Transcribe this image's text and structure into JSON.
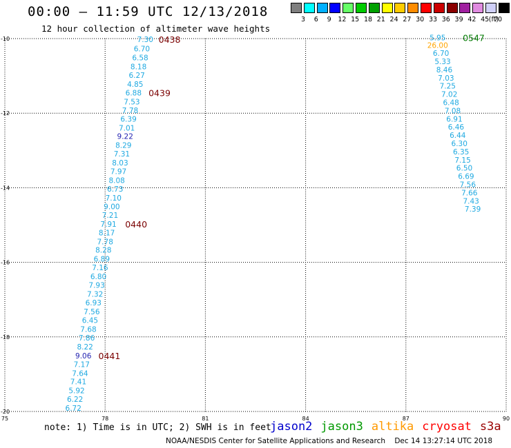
{
  "header": {
    "title": "00:00 – 11:59 UTC 12/13/2018",
    "subtitle": "12 hour collection of altimeter wave heights"
  },
  "legend": {
    "unit": "(ft)",
    "bins": [
      {
        "label": "3",
        "color": "#7f7f7f"
      },
      {
        "label": "6",
        "color": "#00ffff"
      },
      {
        "label": "9",
        "color": "#00b0ff"
      },
      {
        "label": "12",
        "color": "#0000ff"
      },
      {
        "label": "15",
        "color": "#66ff66"
      },
      {
        "label": "18",
        "color": "#00cc00"
      },
      {
        "label": "21",
        "color": "#00a000"
      },
      {
        "label": "24",
        "color": "#ffff00"
      },
      {
        "label": "27",
        "color": "#ffcc00"
      },
      {
        "label": "30",
        "color": "#ff8c00"
      },
      {
        "label": "33",
        "color": "#ff0000"
      },
      {
        "label": "36",
        "color": "#cc0000"
      },
      {
        "label": "39",
        "color": "#8b0000"
      },
      {
        "label": "42",
        "color": "#a020a0"
      },
      {
        "label": "45",
        "color": "#e08ce0"
      },
      {
        "label": "70",
        "color": "#d0d0f8"
      },
      {
        "label": "",
        "color": "#000000"
      }
    ]
  },
  "map": {
    "lon_range": [
      75,
      90
    ],
    "lat_range": [
      20,
      10
    ],
    "lon_ticks": [
      "75",
      "78",
      "81",
      "84",
      "87",
      "90"
    ],
    "lat_ticks": [
      "-10",
      "-12",
      "-14",
      "-16",
      "-18",
      "-20"
    ],
    "colors": {
      "low": "#1fa9e1",
      "mid": "#1f1fb0",
      "high": "#ffa500",
      "pass": "#7a0000",
      "green": "#007a00"
    }
  },
  "tracks": [
    {
      "name": "track-west",
      "points": [
        {
          "lon": 79.2,
          "lat": 10.02,
          "v": "7.30",
          "c": "low"
        },
        {
          "lon": 79.1,
          "lat": 10.27,
          "v": "6.70",
          "c": "low"
        },
        {
          "lon": 79.05,
          "lat": 10.51,
          "v": "6.58",
          "c": "low"
        },
        {
          "lon": 79.0,
          "lat": 10.75,
          "v": "8.18",
          "c": "low"
        },
        {
          "lon": 78.95,
          "lat": 10.98,
          "v": "6.27",
          "c": "low"
        },
        {
          "lon": 78.9,
          "lat": 11.22,
          "v": "4.85",
          "c": "low"
        },
        {
          "lon": 78.85,
          "lat": 11.45,
          "v": "6.88",
          "c": "low"
        },
        {
          "lon": 78.8,
          "lat": 11.69,
          "v": "7.53",
          "c": "low"
        },
        {
          "lon": 78.75,
          "lat": 11.92,
          "v": "7.78",
          "c": "low"
        },
        {
          "lon": 78.7,
          "lat": 12.15,
          "v": "6.39",
          "c": "low"
        },
        {
          "lon": 78.65,
          "lat": 12.39,
          "v": "7.01",
          "c": "low"
        },
        {
          "lon": 78.6,
          "lat": 12.62,
          "v": "9.22",
          "c": "mid"
        },
        {
          "lon": 78.55,
          "lat": 12.86,
          "v": "8.29",
          "c": "low"
        },
        {
          "lon": 78.5,
          "lat": 13.09,
          "v": "7.31",
          "c": "low"
        },
        {
          "lon": 78.45,
          "lat": 13.33,
          "v": "8.03",
          "c": "low"
        },
        {
          "lon": 78.4,
          "lat": 13.56,
          "v": "7.97",
          "c": "low"
        },
        {
          "lon": 78.35,
          "lat": 13.8,
          "v": "8.08",
          "c": "low"
        },
        {
          "lon": 78.3,
          "lat": 14.03,
          "v": "6.73",
          "c": "low"
        },
        {
          "lon": 78.25,
          "lat": 14.27,
          "v": "7.10",
          "c": "low"
        },
        {
          "lon": 78.2,
          "lat": 14.5,
          "v": "9.00",
          "c": "low"
        },
        {
          "lon": 78.15,
          "lat": 14.73,
          "v": "7.21",
          "c": "low"
        },
        {
          "lon": 78.1,
          "lat": 14.97,
          "v": "7.91",
          "c": "low"
        },
        {
          "lon": 78.05,
          "lat": 15.2,
          "v": "8.17",
          "c": "low"
        },
        {
          "lon": 78.0,
          "lat": 15.44,
          "v": "7.78",
          "c": "low"
        },
        {
          "lon": 77.95,
          "lat": 15.67,
          "v": "8.28",
          "c": "low"
        },
        {
          "lon": 77.9,
          "lat": 15.91,
          "v": "6.89",
          "c": "low"
        },
        {
          "lon": 77.85,
          "lat": 16.14,
          "v": "7.16",
          "c": "low"
        },
        {
          "lon": 77.8,
          "lat": 16.38,
          "v": "6.80",
          "c": "low"
        },
        {
          "lon": 77.75,
          "lat": 16.61,
          "v": "7.93",
          "c": "low"
        },
        {
          "lon": 77.7,
          "lat": 16.85,
          "v": "7.32",
          "c": "low"
        },
        {
          "lon": 77.65,
          "lat": 17.08,
          "v": "6.93",
          "c": "low"
        },
        {
          "lon": 77.6,
          "lat": 17.32,
          "v": "7.56",
          "c": "low"
        },
        {
          "lon": 77.55,
          "lat": 17.55,
          "v": "6.45",
          "c": "low"
        },
        {
          "lon": 77.5,
          "lat": 17.79,
          "v": "7.68",
          "c": "low"
        },
        {
          "lon": 77.45,
          "lat": 18.02,
          "v": "7.86",
          "c": "low"
        },
        {
          "lon": 77.4,
          "lat": 18.26,
          "v": "8.22",
          "c": "low"
        },
        {
          "lon": 77.35,
          "lat": 18.5,
          "v": "9.06",
          "c": "mid"
        },
        {
          "lon": 77.3,
          "lat": 18.73,
          "v": "7.17",
          "c": "low"
        },
        {
          "lon": 77.25,
          "lat": 18.97,
          "v": "7.64",
          "c": "low"
        },
        {
          "lon": 77.2,
          "lat": 19.2,
          "v": "7.41",
          "c": "low"
        },
        {
          "lon": 77.15,
          "lat": 19.44,
          "v": "5.92",
          "c": "low"
        },
        {
          "lon": 77.1,
          "lat": 19.67,
          "v": "6.22",
          "c": "low"
        },
        {
          "lon": 77.05,
          "lat": 19.91,
          "v": "6.72",
          "c": "low"
        }
      ],
      "passes": [
        {
          "lon": 79.6,
          "lat": 10.02,
          "t": "0438"
        },
        {
          "lon": 79.3,
          "lat": 11.45,
          "t": "0439"
        },
        {
          "lon": 78.6,
          "lat": 14.97,
          "t": "0440"
        },
        {
          "lon": 77.8,
          "lat": 18.5,
          "t": "0441"
        }
      ]
    },
    {
      "name": "track-east",
      "points": [
        {
          "lon": 87.95,
          "lat": 9.97,
          "v": "5.95",
          "c": "low"
        },
        {
          "lon": 87.95,
          "lat": 10.18,
          "v": "26.00",
          "c": "high"
        },
        {
          "lon": 88.05,
          "lat": 10.39,
          "v": "6.70",
          "c": "low"
        },
        {
          "lon": 88.1,
          "lat": 10.61,
          "v": "5.33",
          "c": "low"
        },
        {
          "lon": 88.15,
          "lat": 10.83,
          "v": "8.46",
          "c": "low"
        },
        {
          "lon": 88.2,
          "lat": 11.05,
          "v": "7.03",
          "c": "low"
        },
        {
          "lon": 88.25,
          "lat": 11.27,
          "v": "7.25",
          "c": "low"
        },
        {
          "lon": 88.3,
          "lat": 11.49,
          "v": "7.02",
          "c": "low"
        },
        {
          "lon": 88.35,
          "lat": 11.71,
          "v": "6.48",
          "c": "low"
        },
        {
          "lon": 88.4,
          "lat": 11.93,
          "v": "7.08",
          "c": "low"
        },
        {
          "lon": 88.45,
          "lat": 12.15,
          "v": "6.91",
          "c": "low"
        },
        {
          "lon": 88.5,
          "lat": 12.37,
          "v": "6.46",
          "c": "low"
        },
        {
          "lon": 88.55,
          "lat": 12.59,
          "v": "6.44",
          "c": "low"
        },
        {
          "lon": 88.6,
          "lat": 12.81,
          "v": "6.30",
          "c": "low"
        },
        {
          "lon": 88.65,
          "lat": 13.03,
          "v": "6.35",
          "c": "low"
        },
        {
          "lon": 88.7,
          "lat": 13.25,
          "v": "7.15",
          "c": "low"
        },
        {
          "lon": 88.75,
          "lat": 13.47,
          "v": "6.50",
          "c": "low"
        },
        {
          "lon": 88.8,
          "lat": 13.69,
          "v": "6.69",
          "c": "low"
        },
        {
          "lon": 88.85,
          "lat": 13.91,
          "v": "7.56",
          "c": "low"
        },
        {
          "lon": 88.9,
          "lat": 14.13,
          "v": "7.66",
          "c": "low"
        },
        {
          "lon": 88.95,
          "lat": 14.35,
          "v": "7.43",
          "c": "low"
        },
        {
          "lon": 89.0,
          "lat": 14.57,
          "v": "7.39",
          "c": "low"
        }
      ],
      "passes": [
        {
          "lon": 88.7,
          "lat": 9.97,
          "t": "0547"
        }
      ]
    }
  ],
  "footer": {
    "note": "note: 1) Time is in UTC; 2) SWH is in feet",
    "satellites": [
      {
        "name": "jason2",
        "color": "#0000cc"
      },
      {
        "name": "jason3",
        "color": "#009900"
      },
      {
        "name": "altika",
        "color": "#ff9900"
      },
      {
        "name": "cryosat",
        "color": "#ff0000"
      },
      {
        "name": "s3a",
        "color": "#990000"
      }
    ],
    "credit": "NOAA/NESDIS Center for Satellite Applications and Research    Dec 14 13:27:14 UTC 2018"
  }
}
